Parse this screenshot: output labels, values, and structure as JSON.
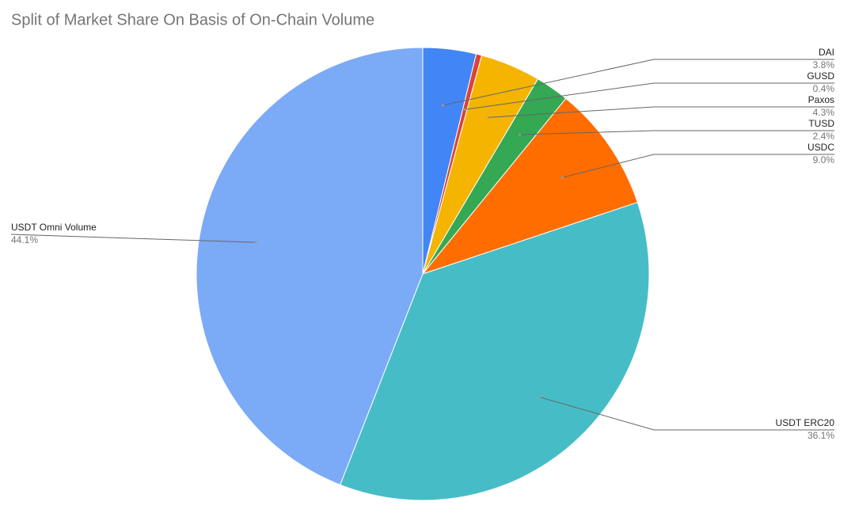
{
  "chart_data": {
    "type": "pie",
    "title": "Split of Market Share On Basis of On-Chain Volume",
    "categories": [
      "DAI",
      "GUSD",
      "Paxos",
      "TUSD",
      "USDC",
      "USDT ERC20",
      "USDT Omni Volume"
    ],
    "values": [
      3.8,
      0.4,
      4.3,
      2.4,
      9.0,
      36.1,
      44.1
    ],
    "value_labels": [
      "3.8%",
      "0.4%",
      "4.3%",
      "2.4%",
      "9.0%",
      "36.1%",
      "44.1%"
    ],
    "colors": [
      "#4285f4",
      "#db4437",
      "#f4b400",
      "#34a853",
      "#ff6d01",
      "#46bdc6",
      "#7baaf7"
    ]
  }
}
